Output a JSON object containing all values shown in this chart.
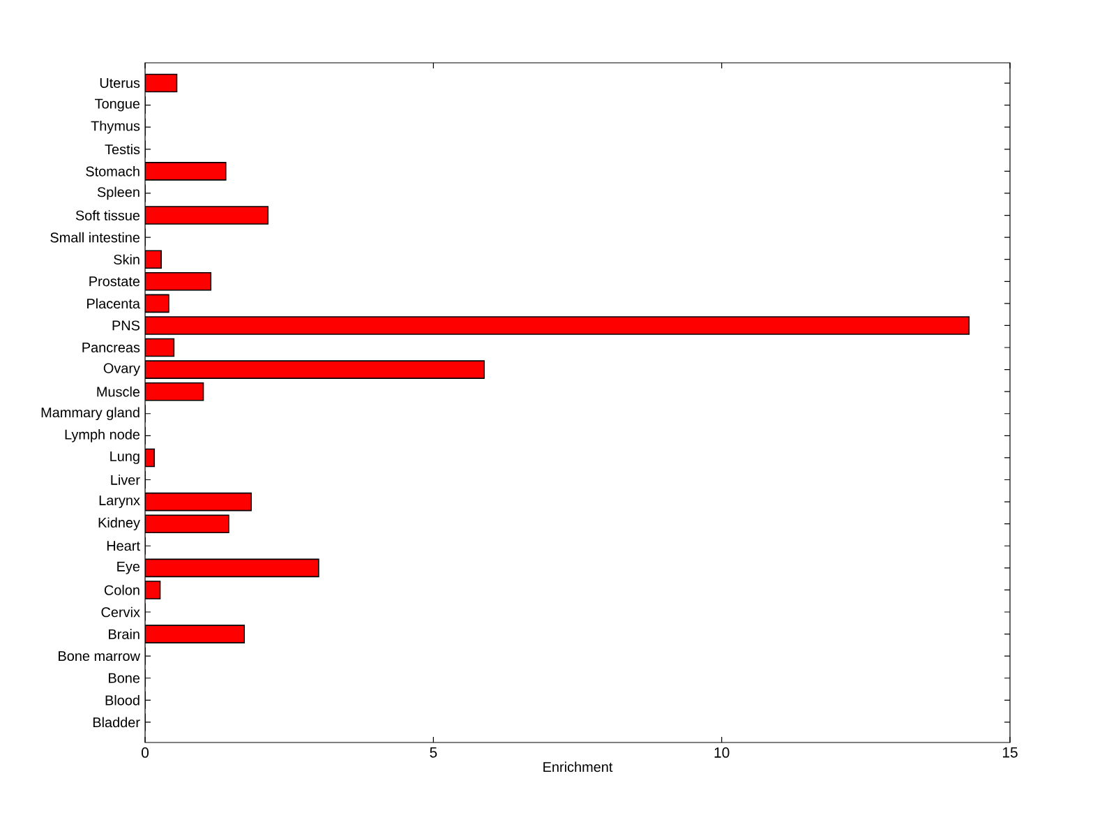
{
  "chart_data": {
    "type": "bar",
    "orientation": "horizontal",
    "xlabel": "Enrichment",
    "categories": [
      "Uterus",
      "Tongue",
      "Thymus",
      "Testis",
      "Stomach",
      "Spleen",
      "Soft tissue",
      "Small intestine",
      "Skin",
      "Prostate",
      "Placenta",
      "PNS",
      "Pancreas",
      "Ovary",
      "Muscle",
      "Mammary gland",
      "Lymph node",
      "Lung",
      "Liver",
      "Larynx",
      "Kidney",
      "Heart",
      "Eye",
      "Colon",
      "Cervix",
      "Brain",
      "Bone marrow",
      "Bone",
      "Blood",
      "Bladder"
    ],
    "values": [
      0.55,
      0,
      0,
      0,
      1.4,
      0,
      2.13,
      0,
      0.28,
      1.14,
      0.41,
      14.29,
      0.5,
      5.88,
      1.01,
      0,
      0,
      0.16,
      0,
      1.84,
      1.45,
      0,
      3.01,
      0.26,
      0,
      1.72,
      0,
      0,
      0,
      0
    ],
    "color": "#ff0000",
    "xlim": [
      0,
      15
    ],
    "xticks": [
      0,
      5,
      10,
      15
    ]
  }
}
